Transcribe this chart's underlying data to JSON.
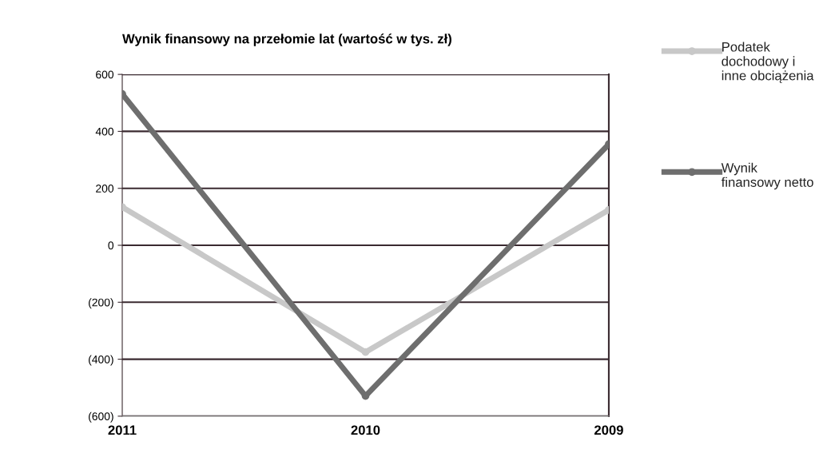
{
  "chart_data": {
    "type": "line",
    "title": "Wynik finansowy na przełomie lat (wartość w tys. zł)",
    "categories": [
      "2011",
      "2010",
      "2009"
    ],
    "series": [
      {
        "name": "Podatek dochodowy i inne obciążenia",
        "color": "#c8c8c8",
        "values": [
          134,
          -375,
          124
        ]
      },
      {
        "name": "Wynik finansowy netto",
        "color": "#6e6e6e",
        "values": [
          531,
          -529,
          355
        ]
      }
    ],
    "ylim": [
      -600,
      600
    ],
    "yticks": [
      {
        "value": -600,
        "label": "(600)"
      },
      {
        "value": -400,
        "label": "(400)"
      },
      {
        "value": -200,
        "label": "(200)"
      },
      0,
      200,
      400,
      600
    ],
    "grid": "y",
    "legend": "right",
    "marker": "circle",
    "line_style": "solid"
  }
}
